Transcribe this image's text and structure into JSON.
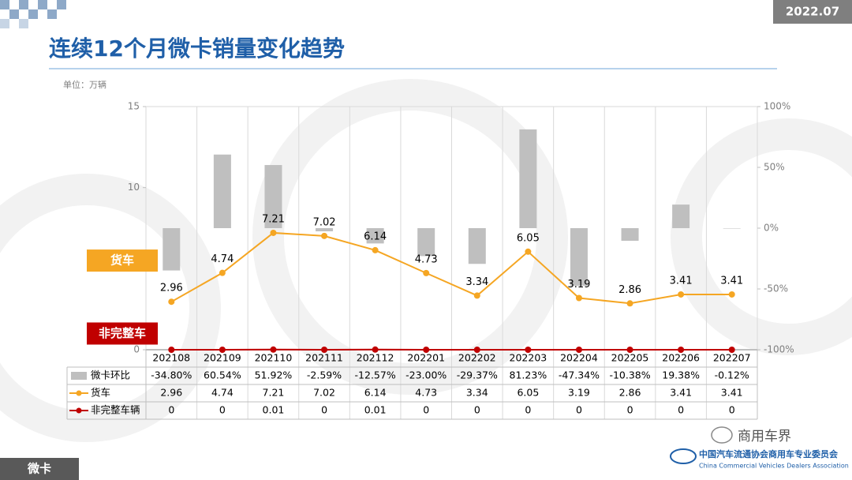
{
  "header": {
    "date": "2022.07",
    "title": "连续12个月微卡销量变化趋势",
    "unit": "单位：万辆"
  },
  "chart_data": {
    "type": "combo",
    "categories": [
      "202108",
      "202109",
      "202110",
      "202111",
      "202112",
      "202201",
      "202202",
      "202203",
      "202204",
      "202205",
      "202206",
      "202207"
    ],
    "series": [
      {
        "name": "微卡环比",
        "type": "bar",
        "axis": "y2",
        "color": "#bfbfbf",
        "values": [
          -34.8,
          60.54,
          51.92,
          -2.59,
          -12.57,
          -23.0,
          -29.37,
          81.23,
          -47.34,
          -10.38,
          19.38,
          -0.12
        ],
        "value_labels": [
          "-34.80%",
          "60.54%",
          "51.92%",
          "-2.59%",
          "-12.57%",
          "-23.00%",
          "-29.37%",
          "81.23%",
          "-47.34%",
          "-10.38%",
          "19.38%",
          "-0.12%"
        ]
      },
      {
        "name": "货车",
        "type": "line",
        "color": "#f5a623",
        "values": [
          2.96,
          4.74,
          7.21,
          7.02,
          6.14,
          4.73,
          3.34,
          6.05,
          3.19,
          2.86,
          3.41,
          3.41
        ]
      },
      {
        "name": "非完整车辆",
        "type": "line",
        "color": "#c00000",
        "values": [
          0,
          0,
          0.01,
          0,
          0.01,
          0,
          0,
          0,
          0,
          0,
          0,
          0
        ]
      }
    ],
    "ylim": [
      0,
      15
    ],
    "yticks": [
      0,
      5,
      10,
      15
    ],
    "y2lim": [
      -100,
      100
    ],
    "y2ticks": [
      {
        "value": -100,
        "label": "-100%"
      },
      {
        "value": -50,
        "label": "-50%"
      },
      {
        "value": 0,
        "label": "0%"
      },
      {
        "value": 50,
        "label": "50%"
      },
      {
        "value": 100,
        "label": "100%"
      }
    ],
    "grid": false,
    "annotations": [
      {
        "text": "货车",
        "color": "#f5a623",
        "value": 5.5
      },
      {
        "text": "非完整车",
        "color": "#c00000",
        "value": 1.0
      }
    ]
  },
  "footer": {
    "section": "微卡",
    "wechat": "商用车界",
    "org_cn": "中国汽车流通协会商用车专业委员会",
    "org_en": "China Commercial Vehicles Dealers Association"
  }
}
